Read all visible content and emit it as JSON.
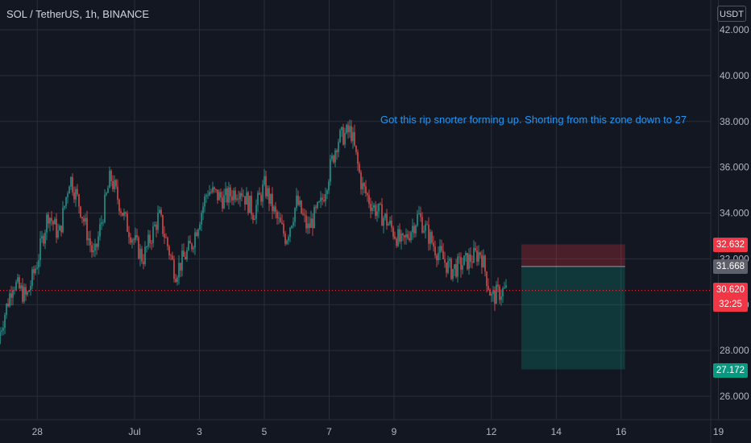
{
  "header": {
    "symbol": "SOL / TetherUS, 1h, BINANCE",
    "currency": "USDT"
  },
  "annotation": {
    "text": "Got this rip snorter forming up. Shorting from this zone down to 27"
  },
  "colors": {
    "background": "#131722",
    "up": "#26a69a",
    "down": "#ef5350",
    "stop_zone": "rgba(242,54,69,0.25)",
    "target_zone": "rgba(8,153,129,0.25)"
  },
  "price_labels": {
    "stop": "32.632",
    "entry": "31.668",
    "last": "30.620",
    "countdown": "32:25",
    "target": "27.172"
  },
  "chart_data": {
    "type": "candlestick",
    "ylim": [
      25.0,
      43.0
    ],
    "y_ticks": [
      "42.000",
      "40.000",
      "38.000",
      "36.000",
      "34.000",
      "32.000",
      "30.000",
      "28.000",
      "26.000"
    ],
    "x_ticks": [
      "28",
      "Jul",
      "3",
      "5",
      "7",
      "9",
      "12",
      "14",
      "16",
      "19"
    ],
    "close_path": [
      [
        "06-27",
        28.3
      ],
      [
        "06-27",
        31.0
      ],
      [
        "06-28",
        30.3
      ],
      [
        "06-28",
        31.9
      ],
      [
        "06-28",
        34.0
      ],
      [
        "06-29",
        33.0
      ],
      [
        "06-29",
        35.6
      ],
      [
        "06-29",
        34.2
      ],
      [
        "06-30",
        32.0
      ],
      [
        "06-30",
        35.6
      ],
      [
        "07-01",
        33.5
      ],
      [
        "07-01",
        32.0
      ],
      [
        "07-02",
        33.9
      ],
      [
        "07-02",
        31.4
      ],
      [
        "07-03",
        32.6
      ],
      [
        "07-03",
        35.0
      ],
      [
        "07-04",
        34.6
      ],
      [
        "07-04",
        35.1
      ],
      [
        "07-05",
        34.0
      ],
      [
        "07-05",
        35.2
      ],
      [
        "07-05",
        33.9
      ],
      [
        "07-06",
        32.9
      ],
      [
        "07-06",
        34.5
      ],
      [
        "07-06",
        33.3
      ],
      [
        "07-07",
        34.4
      ],
      [
        "07-07",
        37.2
      ],
      [
        "07-08",
        37.6
      ],
      [
        "07-08",
        35.2
      ],
      [
        "07-08",
        34.3
      ],
      [
        "07-09",
        33.7
      ],
      [
        "07-09",
        32.6
      ],
      [
        "07-10",
        33.9
      ],
      [
        "07-10",
        32.5
      ],
      [
        "07-11",
        31.5
      ],
      [
        "07-11",
        31.9
      ],
      [
        "07-12",
        32.3
      ],
      [
        "07-12",
        30.3
      ],
      [
        "07-12",
        30.6
      ]
    ],
    "position": {
      "type": "short",
      "entry": 31.668,
      "stop": 32.632,
      "target": 27.172,
      "x_start": "07-13",
      "x_end": "07-16"
    },
    "last_price": 30.62
  }
}
